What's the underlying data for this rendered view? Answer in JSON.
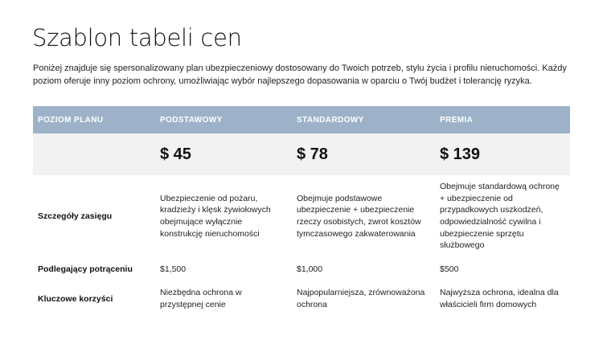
{
  "title": "Szablon tabeli cen",
  "intro": "Poniżej znajduje się spersonalizowany plan ubezpieczeniowy dostosowany do Twoich potrzeb, stylu życia i profilu nieruchomości. Każdy poziom oferuje inny poziom ochrony, umożliwiając wybór najlepszego dopasowania w oparciu o Twój budżet i tolerancję ryzyka.",
  "colors": {
    "header_bg": "#9db2c8",
    "price_bg": "#f2f2f2"
  },
  "table": {
    "headers": [
      "POZIOM PLANU",
      "PODSTAWOWY",
      "STANDARDOWY",
      "PREMIA"
    ],
    "prices": [
      "$ 45",
      "$ 78",
      "$ 139"
    ],
    "rows": [
      {
        "label": "Szczegóły zasięgu",
        "values": [
          "Ubezpieczenie od pożaru, kradzieży i klęsk żywiołowych obejmujące wyłącznie konstrukcję nieruchomości",
          "Obejmuje podstawowe ubezpieczenie + ubezpieczenie rzeczy osobistych, zwrot kosztów tymczasowego zakwaterowania",
          "Obejmuje standardową ochronę + ubezpieczenie od przypadkowych uszkodzeń, odpowiedzialność cywilna i ubezpieczenie sprzętu służbowego"
        ]
      },
      {
        "label": "Podlegający potrąceniu",
        "values": [
          "$1,500",
          "$1,000",
          "$500"
        ]
      },
      {
        "label": "Kluczowe korzyści",
        "values": [
          "Niezbędna ochrona w przystępnej cenie",
          "Najpopularniejsza, zrównoważona ochrona",
          "Najwyższa ochrona, idealna dla właścicieli firm domowych"
        ]
      }
    ]
  }
}
